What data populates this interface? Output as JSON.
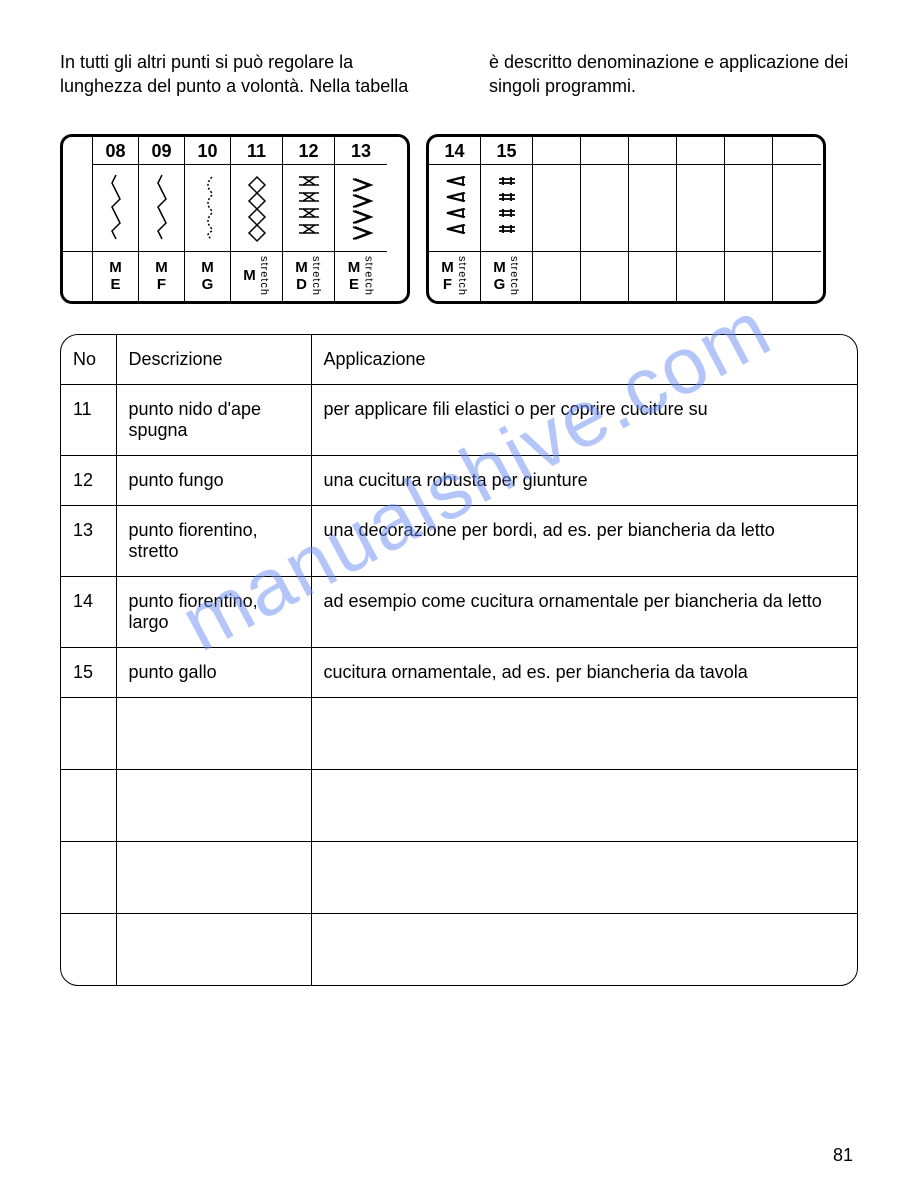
{
  "intro": {
    "left": "In tutti gli altri punti si può regolare la lunghezza del punto a volontà. Nella tabella",
    "right": "è descritto denominazione e applicazione dei singoli programmi."
  },
  "stitch_panel_1": [
    {
      "num": "",
      "icon": "",
      "s1": "",
      "s2": "",
      "stretch": false,
      "first": true
    },
    {
      "num": "08",
      "icon": "zig",
      "s1": "M",
      "s2": "E",
      "stretch": false
    },
    {
      "num": "09",
      "icon": "zig",
      "s1": "M",
      "s2": "F",
      "stretch": false
    },
    {
      "num": "10",
      "icon": "curve",
      "s1": "M",
      "s2": "G",
      "stretch": false
    },
    {
      "num": "11",
      "icon": "diamond",
      "s1": "M",
      "s2": "",
      "stretch": true
    },
    {
      "num": "12",
      "icon": "cross",
      "s1": "M",
      "s2": "D",
      "stretch": true
    },
    {
      "num": "13",
      "icon": "tri",
      "s1": "M",
      "s2": "E",
      "stretch": true
    }
  ],
  "stitch_panel_2": [
    {
      "num": "14",
      "icon": "tri2",
      "s1": "M",
      "s2": "F",
      "stretch": true
    },
    {
      "num": "15",
      "icon": "bars",
      "s1": "M",
      "s2": "G",
      "stretch": true
    },
    {
      "num": "",
      "icon": "",
      "s1": "",
      "s2": "",
      "stretch": false,
      "blank": true
    },
    {
      "num": "",
      "icon": "",
      "s1": "",
      "s2": "",
      "stretch": false,
      "blank": true
    },
    {
      "num": "",
      "icon": "",
      "s1": "",
      "s2": "",
      "stretch": false,
      "blank": true
    },
    {
      "num": "",
      "icon": "",
      "s1": "",
      "s2": "",
      "stretch": false,
      "blank": true
    },
    {
      "num": "",
      "icon": "",
      "s1": "",
      "s2": "",
      "stretch": false,
      "blank": true
    },
    {
      "num": "",
      "icon": "",
      "s1": "",
      "s2": "",
      "stretch": false,
      "blank": true
    }
  ],
  "table": {
    "headers": [
      "No",
      "Descrizione",
      "Applicazione"
    ],
    "rows": [
      {
        "no": "11",
        "desc": "punto nido d'ape spugna",
        "app": "per applicare fili elastici o per coprire cuciture su"
      },
      {
        "no": "12",
        "desc": "punto fungo",
        "app": "una cucitura robusta per giunture"
      },
      {
        "no": "13",
        "desc": "punto fiorentino, stretto",
        "app": "una decorazione per bordi, ad es. per biancheria da letto"
      },
      {
        "no": "14",
        "desc": "punto fiorentino, largo",
        "app": "ad esempio come cucitura ornamentale per biancheria da letto"
      },
      {
        "no": "15",
        "desc": "punto gallo",
        "app": "cucitura ornamentale, ad es. per biancheria da tavola"
      }
    ],
    "empty_rows": 4
  },
  "page_number": "81",
  "watermark": "manualshive.com",
  "stretch_label": "stretch"
}
